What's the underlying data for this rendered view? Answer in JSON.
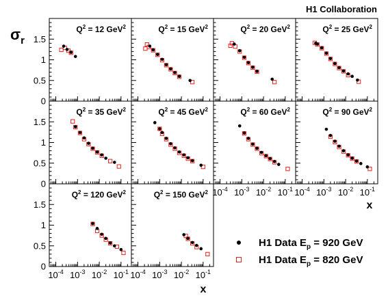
{
  "header": {
    "collaboration": "H1 Collaboration"
  },
  "legend": {
    "entries": [
      {
        "label_main": "H1 Data E",
        "label_sub": "p",
        "label_rest": " = 920 GeV",
        "marker": "filled-circle",
        "color": "#000000"
      },
      {
        "label_main": "H1 Data E",
        "label_sub": "p",
        "label_rest": " = 820 GeV",
        "marker": "open-square",
        "color": "#e8201a"
      }
    ]
  },
  "chart_data": {
    "type": "scatter",
    "ylabel_main": "σ",
    "ylabel_sub": "r",
    "xlabel": "x",
    "x_scale": "log",
    "xlim": [
      5e-05,
      0.3
    ],
    "ylim": [
      0,
      2
    ],
    "y_tick_labels": [
      "0",
      "0.5",
      "1",
      "1.5"
    ],
    "y_tick_values": [
      0,
      0.5,
      1,
      1.5
    ],
    "x_tick_labels": [
      {
        "base": "10",
        "exp": "-4",
        "value": 0.0001
      },
      {
        "base": "10",
        "exp": "-3",
        "value": 0.001
      },
      {
        "base": "10",
        "exp": "-2",
        "value": 0.01
      },
      {
        "base": "10",
        "exp": "-1",
        "value": 0.1
      }
    ],
    "panels": [
      {
        "q2_prefix": "Q",
        "q2_exp": "2",
        "q2_value": " = 12 GeV",
        "q2_unit_exp": "2",
        "series": [
          {
            "name": "H1 Data Ep = 920 GeV",
            "x": [
              0.00023,
              0.00033,
              0.0005,
              0.0008
            ],
            "y": [
              1.33,
              1.25,
              1.18,
              1.08
            ]
          },
          {
            "name": "H1 Data Ep = 820 GeV",
            "x": [
              0.00018,
              0.00026,
              0.00038,
              0.0005
            ],
            "y": [
              1.24,
              1.29,
              1.22,
              1.17
            ]
          }
        ]
      },
      {
        "q2_prefix": "Q",
        "q2_exp": "2",
        "q2_value": " = 15 GeV",
        "q2_unit_exp": "2",
        "series": [
          {
            "name": "H1 Data Ep = 920 GeV",
            "x": [
              0.00035,
              0.0005,
              0.0008,
              0.0013,
              0.002,
              0.0032,
              0.005,
              0.008,
              0.025
            ],
            "y": [
              1.33,
              1.24,
              1.13,
              1.01,
              0.88,
              0.78,
              0.69,
              0.6,
              0.5
            ]
          },
          {
            "name": "H1 Data Ep = 820 GeV",
            "x": [
              0.00022,
              0.00026,
              0.00032,
              0.0005,
              0.0008,
              0.0013,
              0.002,
              0.0032,
              0.005,
              0.008,
              0.032
            ],
            "y": [
              1.27,
              1.37,
              1.31,
              1.23,
              1.12,
              0.99,
              0.87,
              0.77,
              0.68,
              0.59,
              0.46
            ]
          }
        ]
      },
      {
        "q2_prefix": "Q",
        "q2_exp": "2",
        "q2_value": " = 20 GeV",
        "q2_unit_exp": "2",
        "series": [
          {
            "name": "H1 Data Ep = 920 GeV",
            "x": [
              0.00045,
              0.0008,
              0.0013,
              0.002,
              0.0032,
              0.005,
              0.025
            ],
            "y": [
              1.38,
              1.22,
              1.06,
              0.93,
              0.82,
              0.72,
              0.53
            ]
          },
          {
            "name": "H1 Data Ep = 820 GeV",
            "x": [
              0.0003,
              0.00035,
              0.0005,
              0.0008,
              0.0013,
              0.002,
              0.0032,
              0.005,
              0.032
            ],
            "y": [
              1.34,
              1.4,
              1.32,
              1.2,
              1.05,
              0.92,
              0.81,
              0.71,
              0.46
            ]
          }
        ]
      },
      {
        "q2_prefix": "Q",
        "q2_exp": "2",
        "q2_value": " = 25 GeV",
        "q2_unit_exp": "2",
        "series": [
          {
            "name": "H1 Data Ep = 920 GeV",
            "x": [
              0.00042,
              0.0005,
              0.0008,
              0.0013,
              0.002,
              0.0032,
              0.005,
              0.008,
              0.013,
              0.02,
              0.035
            ],
            "y": [
              1.4,
              1.38,
              1.29,
              1.16,
              1.03,
              0.91,
              0.81,
              0.73,
              0.66,
              0.6,
              0.51
            ]
          },
          {
            "name": "H1 Data Ep = 820 GeV",
            "x": [
              0.00038,
              0.0005,
              0.0008,
              0.0013,
              0.002,
              0.0032,
              0.005,
              0.008,
              0.013,
              0.04
            ],
            "y": [
              1.41,
              1.37,
              1.28,
              1.15,
              1.02,
              0.9,
              0.8,
              0.72,
              0.63,
              0.47
            ]
          }
        ]
      },
      {
        "q2_prefix": "Q",
        "q2_exp": "2",
        "q2_value": " = 35 GeV",
        "q2_unit_exp": "2",
        "series": [
          {
            "name": "H1 Data Ep = 920 GeV",
            "x": [
              0.0008,
              0.0013,
              0.002,
              0.0032,
              0.005,
              0.008,
              0.013,
              0.02,
              0.05
            ],
            "y": [
              1.38,
              1.24,
              1.11,
              0.98,
              0.86,
              0.77,
              0.7,
              0.62,
              0.52
            ]
          },
          {
            "name": "H1 Data Ep = 820 GeV",
            "x": [
              0.0006,
              0.0008,
              0.0013,
              0.002,
              0.0032,
              0.005,
              0.008,
              0.013,
              0.032,
              0.08
            ],
            "y": [
              1.51,
              1.37,
              1.23,
              1.08,
              0.96,
              0.85,
              0.76,
              0.68,
              0.55,
              0.42
            ]
          }
        ]
      },
      {
        "q2_prefix": "Q",
        "q2_exp": "2",
        "q2_value": " = 45 GeV",
        "q2_unit_exp": "2",
        "series": [
          {
            "name": "H1 Data Ep = 920 GeV",
            "x": [
              0.0006,
              0.001,
              0.0013,
              0.002,
              0.0032,
              0.005,
              0.008,
              0.013,
              0.02,
              0.032,
              0.08
            ],
            "y": [
              1.48,
              1.33,
              1.24,
              1.1,
              0.97,
              0.87,
              0.77,
              0.7,
              0.63,
              0.56,
              0.45
            ]
          },
          {
            "name": "H1 Data Ep = 820 GeV",
            "x": [
              0.001,
              0.0013,
              0.002,
              0.0032,
              0.005,
              0.008,
              0.013,
              0.02,
              0.032,
              0.1
            ],
            "y": [
              1.33,
              1.21,
              1.08,
              0.95,
              0.85,
              0.75,
              0.68,
              0.61,
              0.55,
              0.41
            ]
          }
        ]
      },
      {
        "q2_prefix": "Q",
        "q2_exp": "2",
        "q2_value": " = 60 GeV",
        "q2_unit_exp": "2",
        "series": [
          {
            "name": "H1 Data Ep = 920 GeV",
            "x": [
              0.0008,
              0.0013,
              0.002,
              0.0032,
              0.005,
              0.008,
              0.013,
              0.02,
              0.032,
              0.05
            ],
            "y": [
              1.4,
              1.23,
              1.1,
              0.96,
              0.86,
              0.76,
              0.68,
              0.61,
              0.54,
              0.47
            ]
          },
          {
            "name": "H1 Data Ep = 820 GeV",
            "x": [
              0.0013,
              0.002,
              0.0032,
              0.005,
              0.008,
              0.013,
              0.02,
              0.032,
              0.13
            ],
            "y": [
              1.22,
              1.08,
              0.95,
              0.85,
              0.74,
              0.67,
              0.6,
              0.52,
              0.36
            ]
          }
        ]
      },
      {
        "q2_prefix": "Q",
        "q2_exp": "2",
        "q2_value": " = 90 GeV",
        "q2_unit_exp": "2",
        "series": [
          {
            "name": "H1 Data Ep = 920 GeV",
            "x": [
              0.0013,
              0.002,
              0.0032,
              0.005,
              0.008,
              0.013,
              0.02,
              0.032,
              0.05,
              0.1
            ],
            "y": [
              1.32,
              1.17,
              1.03,
              0.91,
              0.8,
              0.7,
              0.62,
              0.55,
              0.49,
              0.41
            ]
          },
          {
            "name": "H1 Data Ep = 820 GeV",
            "x": [
              0.002,
              0.0032,
              0.005,
              0.008,
              0.013,
              0.02,
              0.032,
              0.13
            ],
            "y": [
              1.14,
              1.01,
              0.89,
              0.78,
              0.69,
              0.61,
              0.54,
              0.36
            ]
          }
        ]
      },
      {
        "q2_prefix": "Q",
        "q2_exp": "2",
        "q2_value": " = 120 GeV",
        "q2_unit_exp": "2",
        "series": [
          {
            "name": "H1 Data Ep = 920 GeV",
            "x": [
              0.005,
              0.008,
              0.013,
              0.02,
              0.032,
              0.05,
              0.1
            ],
            "y": [
              1.04,
              0.92,
              0.78,
              0.68,
              0.57,
              0.5,
              0.41
            ]
          },
          {
            "name": "H1 Data Ep = 820 GeV",
            "x": [
              0.005,
              0.008,
              0.013,
              0.02,
              0.032,
              0.065,
              0.13
            ],
            "y": [
              1.03,
              0.86,
              0.75,
              0.65,
              0.56,
              0.48,
              0.33
            ]
          }
        ]
      },
      {
        "q2_prefix": "Q",
        "q2_exp": "2",
        "q2_value": " = 150 GeV",
        "q2_unit_exp": "2",
        "series": [
          {
            "name": "H1 Data Ep = 920 GeV",
            "x": [
              0.013,
              0.02,
              0.032,
              0.05,
              0.08
            ],
            "y": [
              0.77,
              0.68,
              0.58,
              0.51,
              0.43
            ]
          },
          {
            "name": "H1 Data Ep = 820 GeV",
            "x": [
              0.016,
              0.02,
              0.032,
              0.05,
              0.16
            ],
            "y": [
              0.74,
              0.67,
              0.56,
              0.47,
              0.3
            ]
          }
        ]
      }
    ]
  }
}
